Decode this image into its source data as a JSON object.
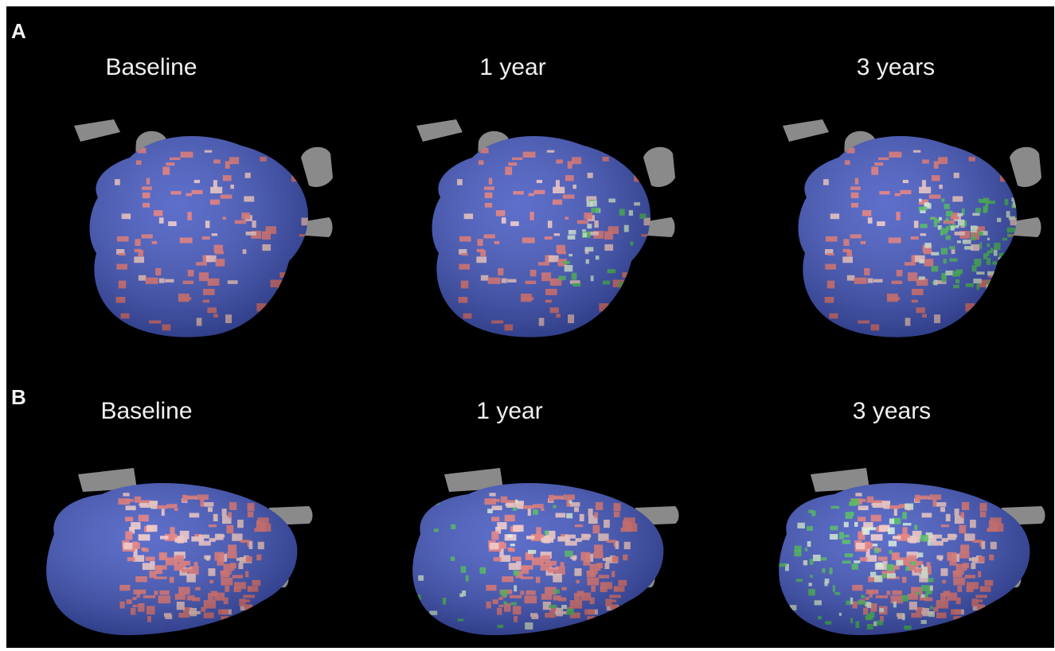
{
  "figure": {
    "background": "#000000",
    "colors": {
      "normal_tissue": "#3a4fbf",
      "scar": "#e8706f",
      "new_scar": "#3fbf4f",
      "veins": "#8a8a8a"
    },
    "rows": [
      {
        "letter": "A",
        "timepoints": [
          {
            "label": "Baseline",
            "green": 0
          },
          {
            "label": "1 year",
            "green": 1
          },
          {
            "label": "3 years",
            "green": 2
          }
        ]
      },
      {
        "letter": "B",
        "timepoints": [
          {
            "label": "Baseline",
            "green": 0
          },
          {
            "label": "1 year",
            "green": 1
          },
          {
            "label": "3 years",
            "green": 2
          }
        ]
      }
    ]
  }
}
